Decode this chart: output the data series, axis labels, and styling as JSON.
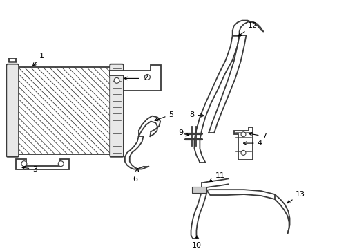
{
  "bg_color": "#ffffff",
  "lc": "#3a3a3a",
  "lw": 1.3,
  "fig_width": 4.89,
  "fig_height": 3.6,
  "dpi": 100
}
